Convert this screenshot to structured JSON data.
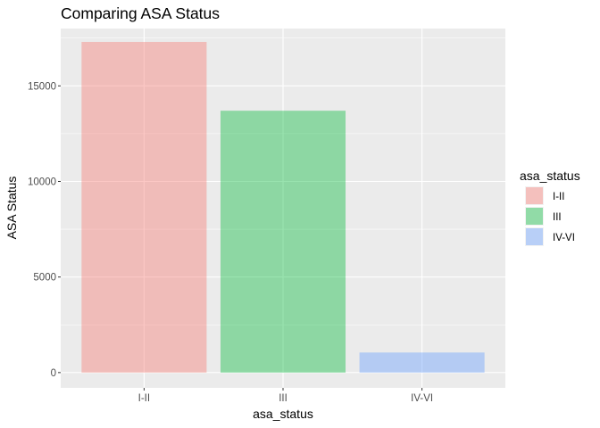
{
  "chart_data": {
    "type": "bar",
    "title": "Comparing ASA Status",
    "xlabel": "asa_status",
    "ylabel": "ASA Status",
    "categories": [
      "I-II",
      "III",
      "IV-VI"
    ],
    "values": [
      17300,
      13700,
      1050
    ],
    "colors": [
      "#F8766D",
      "#00BA38",
      "#619CFF"
    ],
    "bar_opacity": 0.4,
    "ylim": [
      -800,
      18000
    ],
    "yticks": [
      0,
      5000,
      10000,
      15000
    ],
    "ytick_labels": [
      "0",
      "5000",
      "10000",
      "15000"
    ],
    "grid": true,
    "legend": {
      "title": "asa_status",
      "entries": [
        "I-II",
        "III",
        "IV-VI"
      ],
      "position": "right"
    }
  }
}
